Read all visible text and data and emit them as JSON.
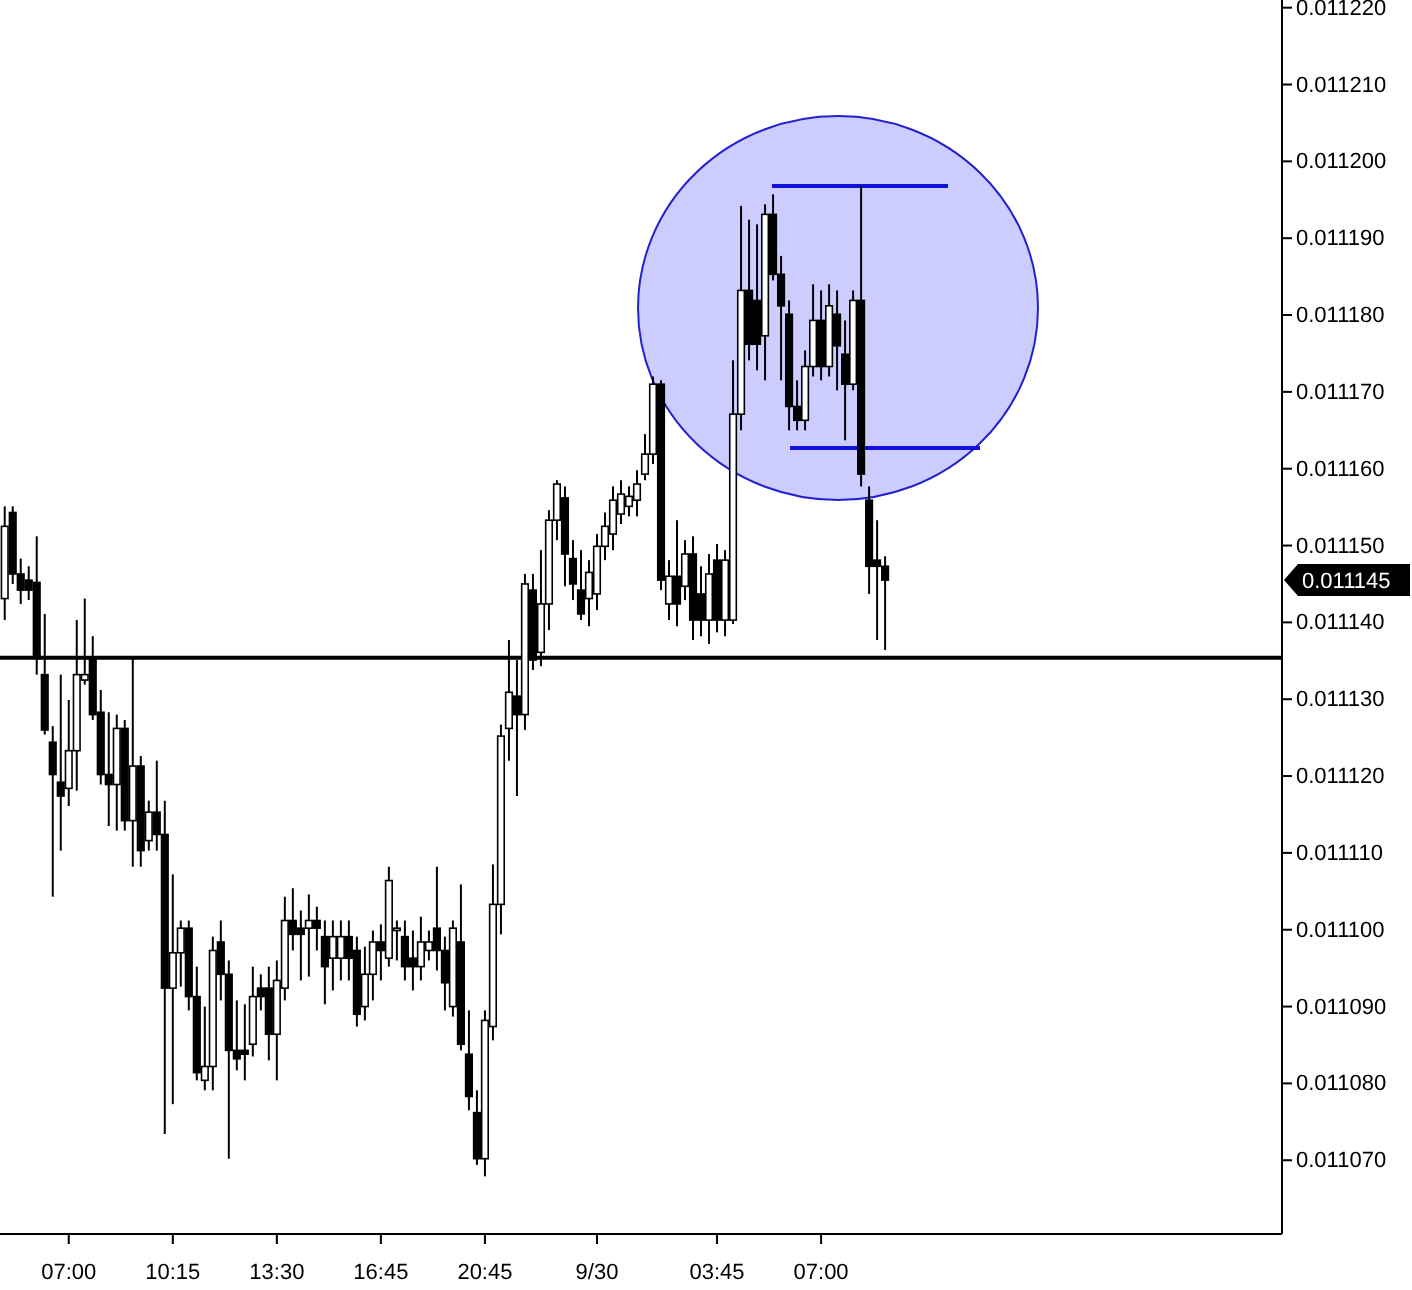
{
  "chart_data": {
    "type": "candlestick",
    "categories": [
      null,
      null,
      null,
      null,
      null,
      null,
      null,
      null,
      "07:00",
      null,
      null,
      null,
      null,
      null,
      null,
      null,
      null,
      null,
      null,
      null,
      null,
      "10:15",
      null,
      null,
      null,
      null,
      null,
      null,
      null,
      null,
      null,
      null,
      null,
      null,
      "13:30",
      null,
      null,
      null,
      null,
      null,
      null,
      null,
      null,
      null,
      null,
      null,
      null,
      "16:45",
      null,
      null,
      null,
      null,
      null,
      null,
      null,
      null,
      null,
      null,
      null,
      null,
      "20:45",
      null,
      null,
      null,
      null,
      null,
      null,
      null,
      null,
      null,
      null,
      null,
      null,
      null,
      "9/30",
      null,
      null,
      null,
      null,
      null,
      null,
      null,
      null,
      null,
      null,
      null,
      null,
      null,
      null,
      "03:45",
      null,
      null,
      null,
      null,
      null,
      null,
      null,
      null,
      null,
      null,
      null,
      null,
      "07:00",
      null,
      null,
      null,
      null,
      null,
      null,
      null,
      null,
      null,
      null,
      null,
      null,
      null,
      null,
      null,
      null,
      null,
      null,
      null,
      null,
      null,
      null,
      null,
      null,
      null,
      null,
      null,
      null,
      null,
      null,
      null,
      null,
      null,
      null,
      null,
      null,
      null,
      null,
      null,
      null,
      null,
      null,
      null,
      null,
      null,
      null,
      null,
      null,
      null,
      null,
      null,
      null,
      null,
      null,
      null,
      null,
      null
    ],
    "ohlc": [
      [
        0.0111431,
        0.0111551,
        0.0111403,
        0.0111525
      ],
      [
        0.0111543,
        0.0111551,
        0.011145,
        0.0111463
      ],
      [
        0.0111463,
        0.0111483,
        0.0111424,
        0.0111442
      ],
      [
        0.0111455,
        0.0111473,
        0.0111429,
        0.0111442
      ],
      [
        0.0111452,
        0.0111512,
        0.0111332,
        0.0111353
      ],
      [
        0.0111332,
        0.0111411,
        0.0111254,
        0.011126
      ],
      [
        0.0111244,
        0.0111265,
        0.0111043,
        0.0111202
      ],
      [
        0.0111192,
        0.0111332,
        0.0111103,
        0.0111174
      ],
      [
        0.0111184,
        0.0111299,
        0.0111161,
        0.0111233
      ],
      [
        0.0111233,
        0.0111403,
        0.0111181,
        0.0111332
      ],
      [
        0.0111325,
        0.0111431,
        0.0111319,
        0.0111332
      ],
      [
        0.0111353,
        0.0111382,
        0.0111273,
        0.011128
      ],
      [
        0.0111283,
        0.0111312,
        0.0111189,
        0.0111202
      ],
      [
        0.0111202,
        0.0111283,
        0.0111135,
        0.0111189
      ],
      [
        0.0111189,
        0.011128,
        0.0111129,
        0.0111262
      ],
      [
        0.0111262,
        0.0111273,
        0.0111129,
        0.0111142
      ],
      [
        0.0111142,
        0.0111353,
        0.0111082,
        0.0111213
      ],
      [
        0.0111213,
        0.0111226,
        0.0111082,
        0.0111103
      ],
      [
        0.0111116,
        0.0111168,
        0.0111103,
        0.0111153
      ],
      [
        0.0111153,
        0.011122,
        0.0111103,
        0.0111124
      ],
      [
        0.0111124,
        0.0111168,
        0.0110734,
        0.0110924
      ],
      [
        0.0110924,
        0.0111072,
        0.0110773,
        0.011097
      ],
      [
        0.011097,
        0.0111012,
        0.0110926,
        0.0111002
      ],
      [
        0.0111002,
        0.0111012,
        0.0110895,
        0.0110913
      ],
      [
        0.0110913,
        0.0110952,
        0.0110804,
        0.0110814
      ],
      [
        0.0110804,
        0.01109,
        0.0110791,
        0.0110822
      ],
      [
        0.0110822,
        0.0110991,
        0.0110791,
        0.0110973
      ],
      [
        0.0110984,
        0.0111012,
        0.0110908,
        0.0110942
      ],
      [
        0.0110942,
        0.011096,
        0.0110702,
        0.0110843
      ],
      [
        0.0110843,
        0.0110908,
        0.0110817,
        0.0110832
      ],
      [
        0.0110843,
        0.0110903,
        0.0110804,
        0.0110838
      ],
      [
        0.0110851,
        0.0110952,
        0.0110835,
        0.0110913
      ],
      [
        0.0110924,
        0.0110942,
        0.0110895,
        0.0110913
      ],
      [
        0.0110924,
        0.0110952,
        0.011083,
        0.0110864
      ],
      [
        0.0110864,
        0.011096,
        0.0110804,
        0.0110934
      ],
      [
        0.0110924,
        0.0111043,
        0.0110908,
        0.0111012
      ],
      [
        0.0111012,
        0.0111054,
        0.0110973,
        0.0110994
      ],
      [
        0.0111002,
        0.0111025,
        0.0110934,
        0.0110994
      ],
      [
        0.0111002,
        0.0111046,
        0.0110939,
        0.0111012
      ],
      [
        0.0111012,
        0.011103,
        0.0110973,
        0.0111002
      ],
      [
        0.0110991,
        0.0111012,
        0.0110903,
        0.0110952
      ],
      [
        0.0110963,
        0.0111012,
        0.0110921,
        0.0110991
      ],
      [
        0.0110963,
        0.0111012,
        0.0110934,
        0.0110991
      ],
      [
        0.0110991,
        0.0111012,
        0.0110934,
        0.0110963
      ],
      [
        0.0110973,
        0.0110991,
        0.0110874,
        0.011089
      ],
      [
        0.01109,
        0.0110978,
        0.0110882,
        0.0110942
      ],
      [
        0.0110942,
        0.0110999,
        0.0110908,
        0.0110984
      ],
      [
        0.0110984,
        0.0111007,
        0.0110934,
        0.0110973
      ],
      [
        0.0110963,
        0.0111082,
        0.0110952,
        0.0111064
      ],
      [
        0.0110999,
        0.0111012,
        0.011096,
        0.0111002
      ],
      [
        0.0110991,
        0.0111012,
        0.0110934,
        0.0110952
      ],
      [
        0.0110963,
        0.0110999,
        0.0110921,
        0.0110952
      ],
      [
        0.0110952,
        0.0111017,
        0.0110934,
        0.0110984
      ],
      [
        0.0110973,
        0.0110999,
        0.011096,
        0.0110984
      ],
      [
        0.0111002,
        0.0111082,
        0.0110947,
        0.0110973
      ],
      [
        0.0110973,
        0.0110991,
        0.0110895,
        0.0110931
      ],
      [
        0.01109,
        0.0111012,
        0.0110887,
        0.0111002
      ],
      [
        0.0110984,
        0.0111059,
        0.0110843,
        0.0110851
      ],
      [
        0.0110838,
        0.0110895,
        0.0110765,
        0.0110783
      ],
      [
        0.0110762,
        0.0110791,
        0.0110694,
        0.0110702
      ],
      [
        0.0110702,
        0.0110895,
        0.0110679,
        0.0110882
      ],
      [
        0.0110874,
        0.0111085,
        0.0110856,
        0.0111033
      ],
      [
        0.0111033,
        0.0111267,
        0.0110994,
        0.0111252
      ],
      [
        0.0111262,
        0.0111377,
        0.011122,
        0.0111309
      ],
      [
        0.0111304,
        0.0111351,
        0.0111174,
        0.011128
      ],
      [
        0.011128,
        0.0111463,
        0.011126,
        0.011145
      ],
      [
        0.0111442,
        0.0111463,
        0.0111338,
        0.0111351
      ],
      [
        0.0111361,
        0.0111494,
        0.0111343,
        0.0111424
      ],
      [
        0.0111424,
        0.0111546,
        0.011139,
        0.0111533
      ],
      [
        0.0111533,
        0.0111585,
        0.0111507,
        0.011158
      ],
      [
        0.0111562,
        0.0111577,
        0.0111447,
        0.0111489
      ],
      [
        0.0111483,
        0.0111507,
        0.0111429,
        0.011145
      ],
      [
        0.0111442,
        0.0111494,
        0.0111403,
        0.0111411
      ],
      [
        0.0111431,
        0.0111481,
        0.0111395,
        0.0111465
      ],
      [
        0.0111437,
        0.0111515,
        0.0111416,
        0.0111499
      ],
      [
        0.0111499,
        0.0111543,
        0.0111481,
        0.0111525
      ],
      [
        0.0111515,
        0.0111577,
        0.0111494,
        0.0111559
      ],
      [
        0.0111541,
        0.0111585,
        0.0111528,
        0.0111567
      ],
      [
        0.0111551,
        0.0111577,
        0.0111538,
        0.0111564
      ],
      [
        0.0111559,
        0.0111598,
        0.0111538,
        0.011158
      ],
      [
        0.0111593,
        0.0111645,
        0.0111585,
        0.0111619
      ],
      [
        0.0111619,
        0.011172,
        0.0111606,
        0.011171
      ],
      [
        0.011171,
        0.0111715,
        0.0111442,
        0.0111455
      ],
      [
        0.0111424,
        0.0111481,
        0.0111403,
        0.011146
      ],
      [
        0.011146,
        0.0111533,
        0.0111395,
        0.0111424
      ],
      [
        0.0111447,
        0.0111507,
        0.0111429,
        0.0111489
      ],
      [
        0.0111489,
        0.0111512,
        0.0111377,
        0.0111403
      ],
      [
        0.0111437,
        0.0111473,
        0.0111382,
        0.0111403
      ],
      [
        0.0111403,
        0.0111489,
        0.0111372,
        0.0111463
      ],
      [
        0.0111481,
        0.0111502,
        0.0111387,
        0.0111403
      ],
      [
        0.0111403,
        0.0111494,
        0.0111382,
        0.0111481
      ],
      [
        0.0111403,
        0.0111741,
        0.0111398,
        0.0111671
      ],
      [
        0.0111671,
        0.0111942,
        0.011165,
        0.0111832
      ],
      [
        0.0111832,
        0.0111924,
        0.0111741,
        0.0111762
      ],
      [
        0.0111819,
        0.0111918,
        0.0111728,
        0.0111762
      ],
      [
        0.0111773,
        0.0111944,
        0.0111715,
        0.0111931
      ],
      [
        0.0111931,
        0.0111957,
        0.0111845,
        0.0111853
      ],
      [
        0.0111853,
        0.0111877,
        0.0111715,
        0.0111812
      ],
      [
        0.0111801,
        0.0111819,
        0.011165,
        0.0111681
      ],
      [
        0.0111681,
        0.0111715,
        0.011165,
        0.0111663
      ],
      [
        0.0111663,
        0.0111754,
        0.011165,
        0.0111733
      ],
      [
        0.0111733,
        0.011184,
        0.011172,
        0.0111793
      ],
      [
        0.0111793,
        0.0111832,
        0.0111715,
        0.0111733
      ],
      [
        0.0111733,
        0.011184,
        0.011172,
        0.0111812
      ],
      [
        0.0111801,
        0.0111832,
        0.0111702,
        0.011176
      ],
      [
        0.0111749,
        0.0111793,
        0.0111637,
        0.011171
      ],
      [
        0.011171,
        0.0111832,
        0.0111702,
        0.0111819
      ],
      [
        0.0111819,
        0.0111968,
        0.0111577,
        0.0111593
      ],
      [
        0.0111559,
        0.0111577,
        0.0111437,
        0.0111473
      ],
      [
        0.0111481,
        0.0111533,
        0.0111377,
        0.0111473
      ],
      [
        0.0111473,
        0.0111486,
        0.0111364,
        0.0111455
      ],
      null,
      null,
      null,
      null,
      null,
      null,
      null,
      null,
      null,
      null,
      null,
      null,
      null,
      null,
      null,
      null,
      null,
      null,
      null,
      null,
      null,
      null,
      null,
      null,
      null,
      null,
      null,
      null,
      null,
      null,
      null,
      null,
      null,
      null,
      null,
      null,
      null,
      null,
      null,
      null,
      null,
      null,
      null,
      null,
      null,
      null,
      null,
      null,
      null
    ],
    "ylim": [
      0.0110604,
      0.011221
    ],
    "yticks": [
      {
        "value": 0.01107,
        "label": "0.011070"
      },
      {
        "value": 0.01108,
        "label": "0.011080"
      },
      {
        "value": 0.01109,
        "label": "0.011090"
      },
      {
        "value": 0.0111,
        "label": "0.011100"
      },
      {
        "value": 0.01111,
        "label": "0.011110"
      },
      {
        "value": 0.01112,
        "label": "0.011120"
      },
      {
        "value": 0.01113,
        "label": "0.011130"
      },
      {
        "value": 0.01114,
        "label": "0.011140"
      },
      {
        "value": 0.01115,
        "label": "0.011150"
      },
      {
        "value": 0.01116,
        "label": "0.011160"
      },
      {
        "value": 0.01117,
        "label": "0.011170"
      },
      {
        "value": 0.01118,
        "label": "0.011180"
      },
      {
        "value": 0.01119,
        "label": "0.011190"
      },
      {
        "value": 0.0112,
        "label": "0.011200"
      },
      {
        "value": 0.01121,
        "label": "0.011210"
      },
      {
        "value": 0.01122,
        "label": "0.011220"
      }
    ],
    "ref_lines": [
      {
        "axis": "y",
        "value": 0.0111354,
        "color": "#000000"
      }
    ],
    "annotations": [
      "0.011145"
    ],
    "grid": false
  }
}
